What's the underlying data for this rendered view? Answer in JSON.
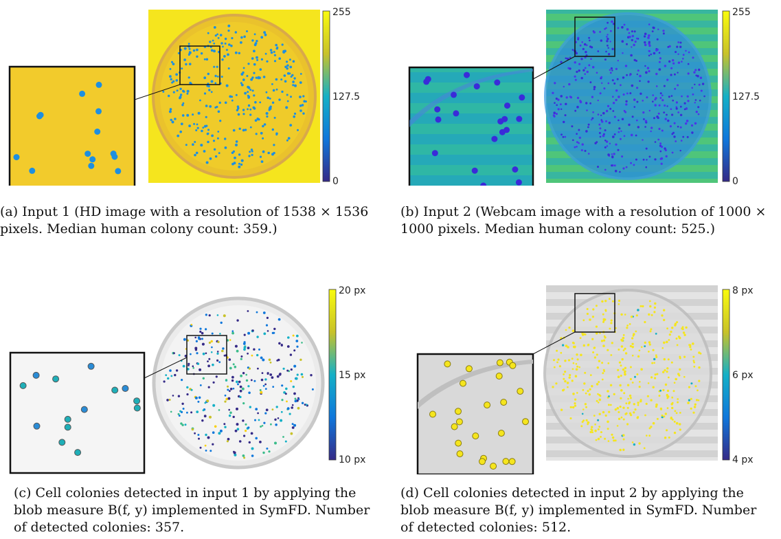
{
  "figure": {
    "panels": [
      {
        "id": "a",
        "colorbar": {
          "ticks": [
            "255",
            "127.5",
            "0"
          ],
          "palette": "parula",
          "range": [
            0,
            255
          ]
        },
        "caption": "(a) Input 1 (HD image with a resolution of 1538 × 1536 pixels. Median human colony count: 359.)",
        "image": "petri dish photo with yellow agar and blue colonies"
      },
      {
        "id": "b",
        "colorbar": {
          "ticks": [
            "255",
            "127.5",
            "0"
          ],
          "palette": "parula",
          "range": [
            0,
            255
          ]
        },
        "caption": "(b) Input 2 (Webcam image with a resolution of 1000 × 1000 pixels. Median human colony count: 525.)",
        "image": "webcam petri dish with green striped background and purple colonies"
      },
      {
        "id": "c",
        "colorbar": {
          "ticks": [
            "20 px",
            "15 px",
            "10 px"
          ],
          "palette": "parula",
          "range": [
            10,
            20
          ]
        },
        "caption": "(c) Cell colonies detected in input 1 by applying the blob measure B(f, y) implemented in SymFD. Number of detected colonies: 357.",
        "image": "grayscale dish with colored detected colony markers"
      },
      {
        "id": "d",
        "colorbar": {
          "ticks": [
            "8 px",
            "6 px",
            "4 px"
          ],
          "palette": "parula",
          "range": [
            4,
            8
          ]
        },
        "caption": "(d) Cell colonies detected in input 2 by applying the blob measure B(f, y) implemented in SymFD. Number of detected colonies: 512.",
        "image": "grayscale striped dish with yellow detected colony markers"
      }
    ]
  },
  "colors": {
    "parula_top": "#F9FB0E",
    "parula_mid": "#15B0C6",
    "parula_bottom": "#352A87",
    "agar_yellow": "#F2D22C",
    "colony_blue": "#1E8FE0"
  }
}
